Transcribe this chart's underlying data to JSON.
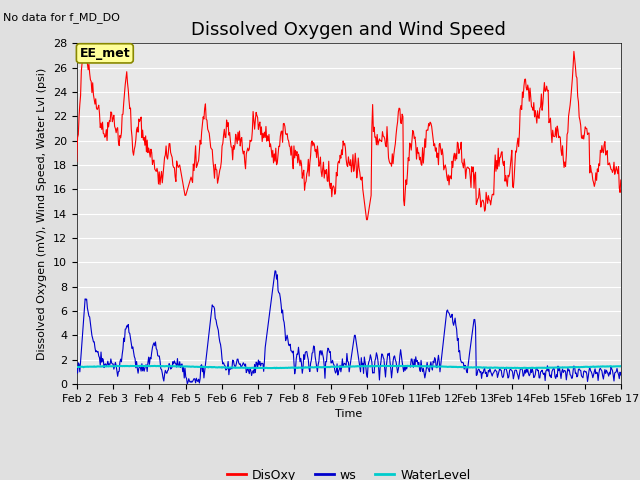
{
  "title": "Dissolved Oxygen and Wind Speed",
  "subtitle": "No data for f_MD_DO",
  "xlabel": "Time",
  "ylabel": "Dissolved Oxygen (mV), Wind Speed, Water Lvl (psi)",
  "ylim": [
    0,
    28
  ],
  "yticks": [
    0,
    2,
    4,
    6,
    8,
    10,
    12,
    14,
    16,
    18,
    20,
    22,
    24,
    26,
    28
  ],
  "xtick_labels": [
    "Feb 2",
    "Feb 3",
    "Feb 4",
    "Feb 5",
    "Feb 6",
    "Feb 7",
    "Feb 8",
    "Feb 9",
    "Feb 10",
    "Feb 11",
    "Feb 12",
    "Feb 13",
    "Feb 14",
    "Feb 15",
    "Feb 16",
    "Feb 17"
  ],
  "annotation_box": "EE_met",
  "bg_color": "#e0e0e0",
  "plot_bg_color": "#e8e8e8",
  "disoxy_color": "#ff0000",
  "ws_color": "#0000cc",
  "waterlevel_color": "#00cccc",
  "legend_labels": [
    "DisOxy",
    "ws",
    "WaterLevel"
  ],
  "title_fontsize": 13,
  "axis_label_fontsize": 8,
  "tick_fontsize": 8
}
